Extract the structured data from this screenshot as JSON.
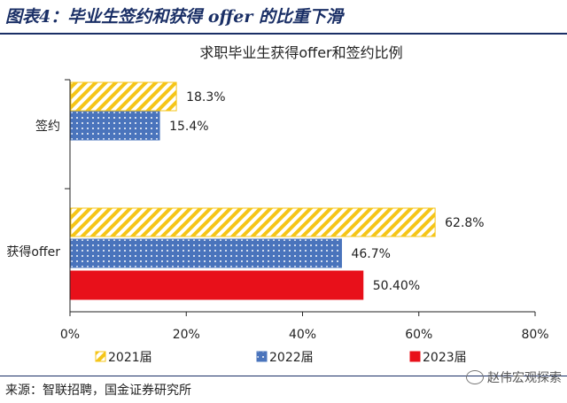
{
  "header": {
    "title": "图表4：毕业生签约和获得 offer 的比重下滑"
  },
  "footer": {
    "source": "来源：智联招聘，国金证券研究所",
    "watermark": "赵伟宏观探索"
  },
  "colors": {
    "s2021": "#F5C518",
    "s2022": "#4A74BC",
    "s2023": "#E8101A"
  },
  "chart_data": {
    "type": "bar",
    "orientation": "horizontal",
    "title": "求职毕业生获得offer和签约比例",
    "categories": [
      "签约",
      "获得offer"
    ],
    "series": [
      {
        "name": "2021届",
        "values": [
          18.3,
          62.8
        ],
        "labels": [
          "18.3%",
          "62.8%"
        ],
        "pattern": "diagonal-stripes"
      },
      {
        "name": "2022届",
        "values": [
          15.4,
          46.7
        ],
        "labels": [
          "15.4%",
          "46.7%"
        ],
        "pattern": "dots"
      },
      {
        "name": "2023届",
        "values": [
          null,
          50.4
        ],
        "labels": [
          "",
          "50.40%"
        ],
        "pattern": "solid"
      }
    ],
    "xlim": [
      0,
      80
    ],
    "x_ticks": [
      "0%",
      "20%",
      "40%",
      "60%",
      "80%"
    ],
    "grid": false,
    "legend": "bottom"
  }
}
